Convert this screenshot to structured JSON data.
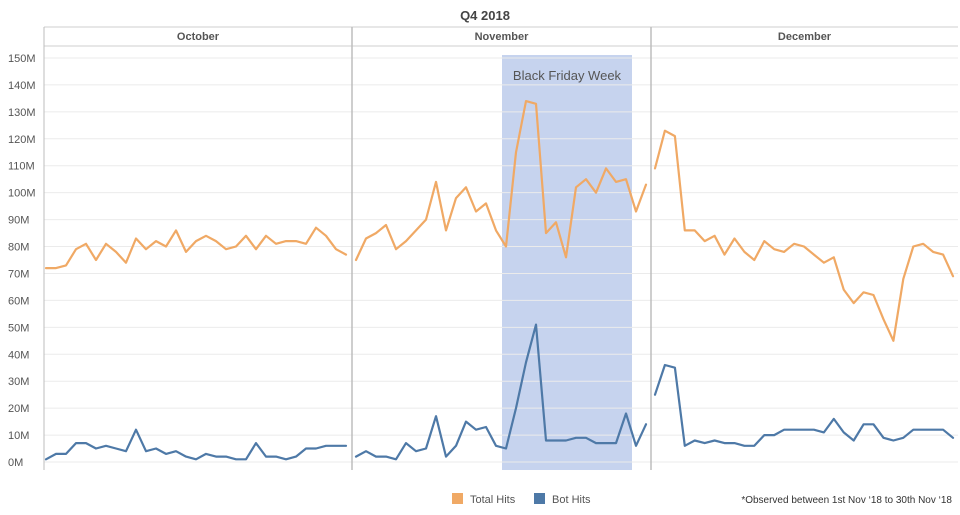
{
  "chart_data": {
    "type": "line",
    "title": "Q4 2018",
    "panels": [
      {
        "label": "October",
        "x": [
          1,
          2,
          3,
          4,
          5,
          6,
          7,
          8,
          9,
          10,
          11,
          12,
          13,
          14,
          15,
          16,
          17,
          18,
          19,
          20,
          21,
          22,
          23,
          24,
          25,
          26,
          27,
          28,
          29,
          30,
          31
        ],
        "series": [
          {
            "name": "Total Hits",
            "values": [
              72,
              72,
              73,
              79,
              81,
              75,
              81,
              78,
              74,
              83,
              79,
              82,
              80,
              86,
              78,
              82,
              84,
              82,
              79,
              80,
              84,
              79,
              84,
              81,
              82,
              82,
              81,
              87,
              84,
              79,
              77
            ]
          },
          {
            "name": "Bot Hits",
            "values": [
              1,
              3,
              3,
              7,
              7,
              5,
              6,
              5,
              4,
              12,
              4,
              5,
              3,
              4,
              2,
              1,
              3,
              2,
              2,
              1,
              1,
              7,
              2,
              2,
              1,
              2,
              5,
              5,
              6,
              6,
              6
            ]
          }
        ]
      },
      {
        "label": "November",
        "x": [
          1,
          2,
          3,
          4,
          5,
          6,
          7,
          8,
          9,
          10,
          11,
          12,
          13,
          14,
          15,
          16,
          17,
          18,
          19,
          20,
          21,
          22,
          23,
          24,
          25,
          26,
          27,
          28,
          29,
          30
        ],
        "series": [
          {
            "name": "Total Hits",
            "values": [
              75,
              83,
              85,
              88,
              79,
              82,
              86,
              90,
              104,
              86,
              98,
              102,
              93,
              96,
              86,
              80,
              115,
              134,
              133,
              85,
              89,
              76,
              102,
              105,
              100,
              109,
              104,
              105,
              93,
              103
            ]
          },
          {
            "name": "Bot Hits",
            "values": [
              2,
              4,
              2,
              2,
              1,
              7,
              4,
              5,
              17,
              2,
              6,
              15,
              12,
              13,
              6,
              5,
              20,
              37,
              51,
              8,
              8,
              8,
              9,
              9,
              7,
              7,
              7,
              18,
              6,
              14
            ]
          }
        ]
      },
      {
        "label": "December",
        "x": [
          1,
          2,
          3,
          4,
          5,
          6,
          7,
          8,
          9,
          10,
          11,
          12,
          13,
          14,
          15,
          16,
          17,
          18,
          19,
          20,
          21,
          22,
          23,
          24,
          25,
          26,
          27,
          28,
          29,
          30,
          31
        ],
        "series": [
          {
            "name": "Total Hits",
            "values": [
              109,
              123,
              121,
              86,
              86,
              82,
              84,
              77,
              83,
              78,
              75,
              82,
              79,
              78,
              81,
              80,
              77,
              74,
              76,
              64,
              59,
              63,
              62,
              53,
              45,
              68,
              80,
              81,
              78,
              77,
              69
            ]
          },
          {
            "name": "Bot Hits",
            "values": [
              25,
              36,
              35,
              6,
              8,
              7,
              8,
              7,
              7,
              6,
              6,
              10,
              10,
              12,
              12,
              12,
              12,
              11,
              16,
              11,
              8,
              14,
              14,
              9,
              8,
              9,
              12,
              12,
              12,
              12,
              9
            ]
          }
        ]
      }
    ],
    "y_ticks": [
      "0M",
      "10M",
      "20M",
      "30M",
      "40M",
      "50M",
      "60M",
      "70M",
      "80M",
      "90M",
      "100M",
      "110M",
      "120M",
      "130M",
      "140M",
      "150M"
    ],
    "ylim": [
      0,
      150
    ],
    "y_unit": "M",
    "grid": true,
    "highlight": {
      "label": "Black Friday Week",
      "panel": 1,
      "x_start": 16,
      "x_end": 28,
      "color": "#c6d3ee"
    },
    "legend": {
      "position": "bottom",
      "items": [
        {
          "name": "Total Hits",
          "color": "#f0a965"
        },
        {
          "name": "Bot Hits",
          "color": "#4e79a7"
        }
      ]
    },
    "footnote": "*Observed between 1st Nov ‘18 to 30th  Nov ‘18"
  }
}
